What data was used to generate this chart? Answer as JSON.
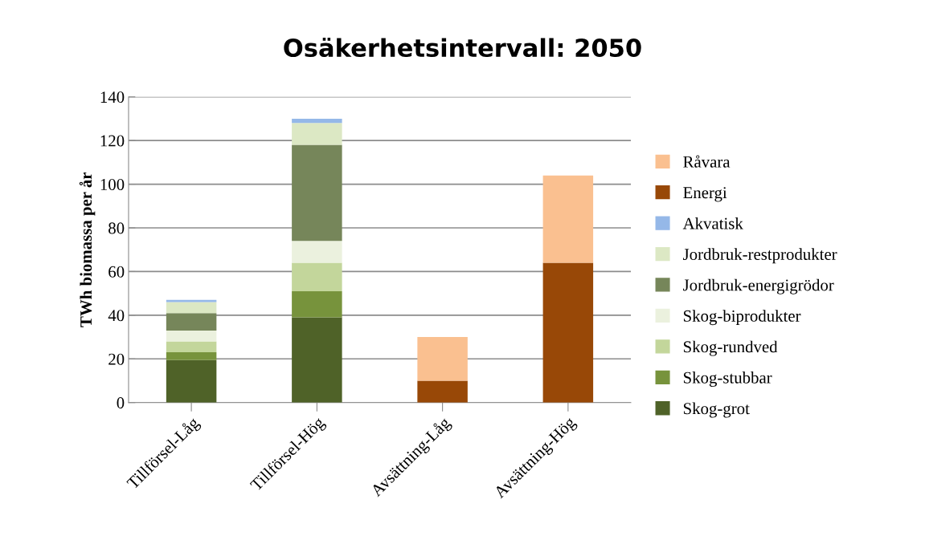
{
  "chart_data": {
    "type": "bar",
    "title": "Osäkerhetsintervall: 2050",
    "ylabel": "TWh biomassa per år",
    "categories": [
      "Tillförsel-Låg",
      "Tillförsel-Hög",
      "Avsättning-Låg",
      "Avsättning-Hög"
    ],
    "stacked": true,
    "ylim": [
      0,
      140
    ],
    "yticks": [
      0,
      20,
      40,
      60,
      80,
      100,
      120,
      140
    ],
    "grid": "y",
    "legend": "right",
    "series": [
      {
        "name": "Skog-grot",
        "color": "#4f6228",
        "values": [
          19.5,
          39,
          null,
          null
        ]
      },
      {
        "name": "Skog-stubbar",
        "color": "#77933c",
        "values": [
          3.5,
          12,
          null,
          null
        ]
      },
      {
        "name": "Skog-rundved",
        "color": "#c3d69b",
        "values": [
          5,
          13,
          null,
          null
        ]
      },
      {
        "name": "Skog-biprodukter",
        "color": "#ebf1de",
        "values": [
          5,
          10,
          null,
          null
        ]
      },
      {
        "name": "Jordbruk-energigrödor",
        "color": "#76865a",
        "values": [
          8,
          44,
          null,
          null
        ]
      },
      {
        "name": "Jordbruk-restprodukter",
        "color": "#dce8c4",
        "values": [
          5,
          10,
          null,
          null
        ]
      },
      {
        "name": "Akvatisk",
        "color": "#95b8e8",
        "values": [
          1,
          2,
          null,
          null
        ]
      },
      {
        "name": "Energi",
        "color": "#984807",
        "values": [
          null,
          null,
          10,
          64
        ]
      },
      {
        "name": "Råvara",
        "color": "#fac090",
        "values": [
          null,
          null,
          20,
          40
        ]
      }
    ]
  }
}
